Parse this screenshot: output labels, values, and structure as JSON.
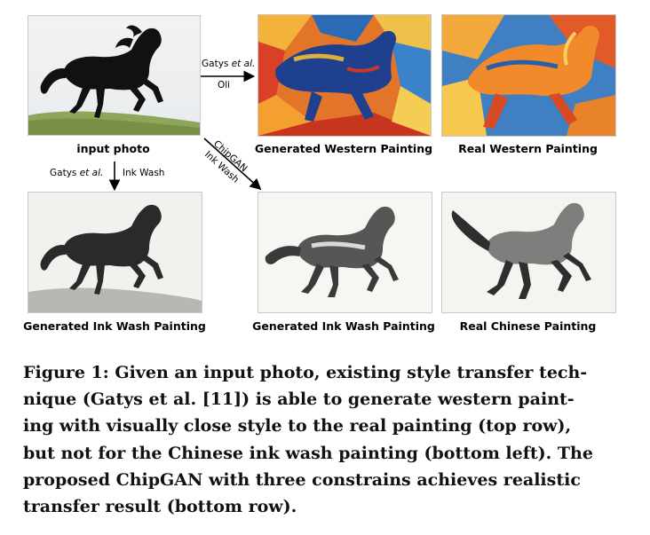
{
  "figure": {
    "labels": {
      "input_photo": "input photo",
      "generated_western": "Generated Western Painting",
      "real_western": "Real Western Painting",
      "generated_ink_left": "Generated Ink Wash Painting",
      "generated_ink_mid": "Generated Ink Wash Painting",
      "real_chinese": "Real Chinese Painting"
    },
    "arrows": {
      "top_author": "Gatys",
      "top_etal": "et al.",
      "top_style": "Oli",
      "down_author": "Gatys",
      "down_etal": "et al.",
      "down_style": "Ink Wash",
      "diag_method": "ChipGAN",
      "diag_style": "Ink Wash"
    }
  },
  "caption": {
    "lines": [
      "Figure 1: Given an input photo, existing style transfer tech-",
      "nique (Gatys et al. [11]) is able to generate western paint-",
      "ing with visually close style to the real painting (top row),",
      "but not for the Chinese ink wash painting (bottom left). The",
      "proposed ChipGAN with three constrains achieves realistic",
      "transfer result (bottom row)."
    ]
  }
}
